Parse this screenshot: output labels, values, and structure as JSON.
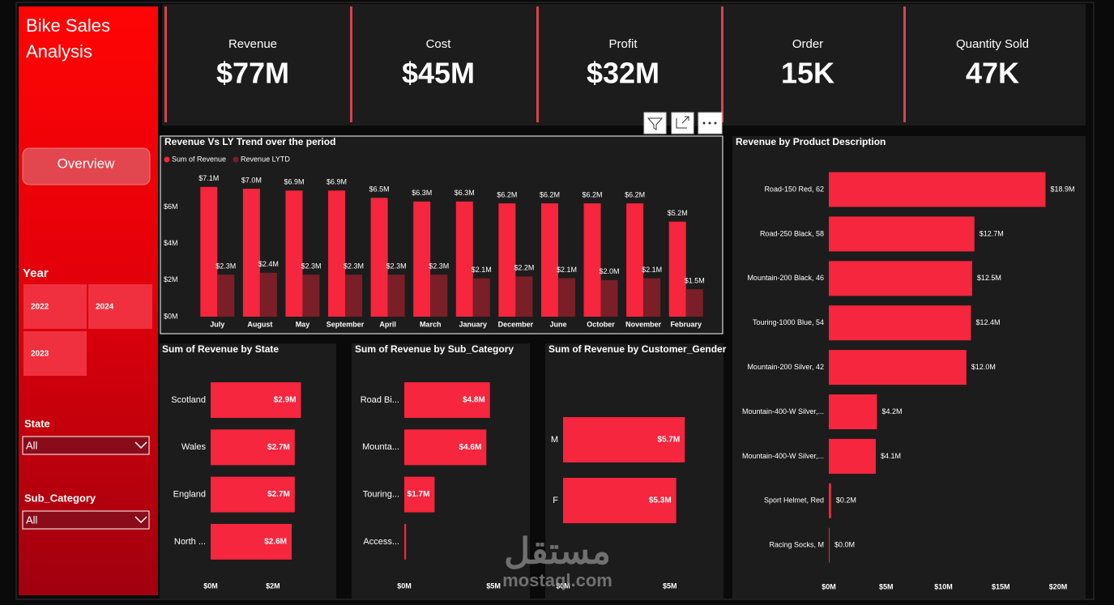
{
  "sidebar": {
    "title": "Bike Sales Analysis",
    "button": "Overview",
    "year_title": "Year",
    "years": [
      "2022",
      "2024",
      "2023"
    ],
    "filters": [
      {
        "label": "State",
        "value": "All"
      },
      {
        "label": "Sub_Category",
        "value": "All"
      }
    ]
  },
  "kpis": [
    {
      "label": "Revenue",
      "value": "$77M"
    },
    {
      "label": "Cost",
      "value": "$45M"
    },
    {
      "label": "Profit",
      "value": "$32M"
    },
    {
      "label": "Order",
      "value": "15K"
    },
    {
      "label": "Quantity Sold",
      "value": "47K"
    }
  ],
  "watermark": {
    "arabic": "مستقل",
    "latin": "mostaql.com"
  },
  "chart_data": [
    {
      "type": "bar",
      "title": "Revenue Vs LY Trend over the period",
      "categories": [
        "July",
        "August",
        "May",
        "September",
        "April",
        "March",
        "January",
        "December",
        "June",
        "October",
        "November",
        "February"
      ],
      "series": [
        {
          "name": "Sum of Revenue",
          "color": "#f5263d",
          "values": [
            7.1,
            7.0,
            6.9,
            6.9,
            6.5,
            6.3,
            6.3,
            6.2,
            6.2,
            6.2,
            6.2,
            5.2
          ],
          "value_labels": [
            "$7.1M",
            "$7.0M",
            "$6.9M",
            "$6.9M",
            "$6.5M",
            "$6.3M",
            "$6.3M",
            "$6.2M",
            "$6.2M",
            "$6.2M",
            "$6.2M",
            "$5.2M"
          ]
        },
        {
          "name": "Revenue LYTD",
          "color": "#7a1f27",
          "values": [
            2.3,
            2.4,
            2.3,
            2.3,
            2.3,
            2.3,
            2.1,
            2.2,
            2.1,
            2.0,
            2.1,
            1.5
          ],
          "value_labels": [
            "$2.3M",
            "$2.4M",
            "$2.3M",
            "$2.3M",
            "$2.3M",
            "$2.3M",
            "$2.1M",
            "$2.2M",
            "$2.1M",
            "$2.0M",
            "$2.1M",
            "$1.5M"
          ]
        }
      ],
      "ylim": [
        0,
        7.8
      ],
      "yticks": [
        {
          "value": 0,
          "label": "$0M"
        },
        {
          "value": 2,
          "label": "$2M"
        },
        {
          "value": 4,
          "label": "$4M"
        },
        {
          "value": 6,
          "label": "$6M"
        }
      ]
    },
    {
      "type": "barh",
      "title": "Revenue by Product Description",
      "categories": [
        "Road-150 Red, 62",
        "Road-250 Black, 58",
        "Mountain-200 Black, 46",
        "Touring-1000 Blue, 54",
        "Mountain-200 Silver, 42",
        "Mountain-400-W Silver,...",
        "Mountain-400-W Silver,...",
        "Sport Helmet, Red",
        "Racing Socks, M"
      ],
      "values": [
        18.9,
        12.7,
        12.5,
        12.4,
        12.0,
        4.2,
        4.1,
        0.2,
        0.0
      ],
      "value_labels": [
        "$18.9M",
        "$12.7M",
        "$12.5M",
        "$12.4M",
        "$12.0M",
        "$4.2M",
        "$4.1M",
        "$0.2M",
        "$0.0M"
      ],
      "color": "#f5263d",
      "xlim": [
        0,
        22.4
      ],
      "xticks": [
        {
          "value": 0,
          "label": "$0M"
        },
        {
          "value": 5,
          "label": "$5M"
        },
        {
          "value": 10,
          "label": "$10M"
        },
        {
          "value": 15,
          "label": "$15M"
        },
        {
          "value": 20,
          "label": "$20M"
        }
      ]
    },
    {
      "type": "barh",
      "title": "Sum of Revenue by State",
      "categories": [
        "Scotland",
        "Wales",
        "England",
        "North ..."
      ],
      "values": [
        2.9,
        2.7,
        2.7,
        2.6
      ],
      "value_labels": [
        "$2.9M",
        "$2.7M",
        "$2.7M",
        "$2.6M"
      ],
      "color": "#f5263d",
      "xlim": [
        0,
        3.9
      ],
      "xticks": [
        {
          "value": 0,
          "label": "$0M"
        },
        {
          "value": 2,
          "label": "$2M"
        }
      ]
    },
    {
      "type": "barh",
      "title": "Sum of Revenue by Sub_Category",
      "categories": [
        "Road Bi...",
        "Mounta...",
        "Touring...",
        "Access..."
      ],
      "values": [
        4.8,
        4.6,
        1.7,
        0.1
      ],
      "value_labels": [
        "$4.8M",
        "$4.6M",
        "$1.7M",
        null
      ],
      "color": "#f5263d",
      "xlim": [
        0,
        6.9
      ],
      "xticks": [
        {
          "value": 0,
          "label": "$0M"
        },
        {
          "value": 5,
          "label": "$5M"
        }
      ]
    },
    {
      "type": "barh",
      "title": "Sum of Revenue by Customer_Gender",
      "categories": [
        "M",
        "F"
      ],
      "values": [
        5.7,
        5.3
      ],
      "value_labels": [
        "$5.7M",
        "$5.3M"
      ],
      "color": "#f5263d",
      "xlim": [
        0,
        7.4
      ],
      "xticks": [
        {
          "value": 0,
          "label": "$0M"
        },
        {
          "value": 5,
          "label": "$5M"
        }
      ]
    }
  ]
}
